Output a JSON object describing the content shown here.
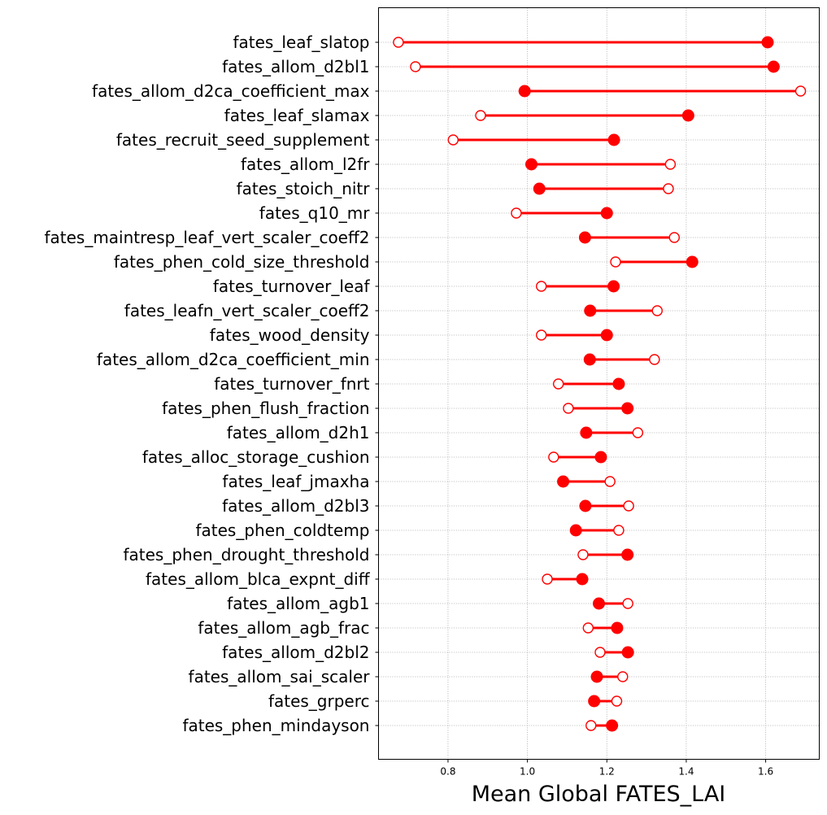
{
  "chart_data": {
    "type": "dumbbell",
    "xlabel": "Mean Global FATES_LAI",
    "xlim": [
      0.625,
      1.735
    ],
    "xticks": [
      0.8,
      1.0,
      1.2,
      1.4,
      1.6
    ],
    "xtick_labels": [
      "0.8",
      "1.0",
      "1.2",
      "1.4",
      "1.6"
    ],
    "grid": true,
    "colors": {
      "line": "#ff0000",
      "marker": "#ff0000"
    },
    "marker_legend": {
      "filled": "filled-circle",
      "open": "open-circle"
    },
    "rows": [
      {
        "label": "fates_leaf_slatop",
        "filled": 1.605,
        "open": 0.675
      },
      {
        "label": "fates_allom_d2bl1",
        "filled": 1.62,
        "open": 0.718
      },
      {
        "label": "fates_allom_d2ca_coefficient_max",
        "filled": 0.993,
        "open": 1.688
      },
      {
        "label": "fates_leaf_slamax",
        "filled": 1.405,
        "open": 0.882
      },
      {
        "label": "fates_recruit_seed_supplement",
        "filled": 1.218,
        "open": 0.813
      },
      {
        "label": "fates_allom_l2fr",
        "filled": 1.01,
        "open": 1.36
      },
      {
        "label": "fates_stoich_nitr",
        "filled": 1.03,
        "open": 1.355
      },
      {
        "label": "fates_q10_mr",
        "filled": 1.2,
        "open": 0.972
      },
      {
        "label": "fates_maintresp_leaf_vert_scaler_coeff2",
        "filled": 1.145,
        "open": 1.37
      },
      {
        "label": "fates_phen_cold_size_threshold",
        "filled": 1.415,
        "open": 1.222
      },
      {
        "label": "fates_turnover_leaf",
        "filled": 1.217,
        "open": 1.035
      },
      {
        "label": "fates_leafn_vert_scaler_coeff2",
        "filled": 1.158,
        "open": 1.327
      },
      {
        "label": "fates_wood_density",
        "filled": 1.2,
        "open": 1.035
      },
      {
        "label": "fates_allom_d2ca_coefficient_min",
        "filled": 1.157,
        "open": 1.32
      },
      {
        "label": "fates_turnover_fnrt",
        "filled": 1.23,
        "open": 1.078
      },
      {
        "label": "fates_phen_flush_fraction",
        "filled": 1.252,
        "open": 1.103
      },
      {
        "label": "fates_allom_d2h1",
        "filled": 1.148,
        "open": 1.278
      },
      {
        "label": "fates_alloc_storage_cushion",
        "filled": 1.185,
        "open": 1.066
      },
      {
        "label": "fates_leaf_jmaxha",
        "filled": 1.09,
        "open": 1.208
      },
      {
        "label": "fates_allom_d2bl3",
        "filled": 1.146,
        "open": 1.255
      },
      {
        "label": "fates_phen_coldtemp",
        "filled": 1.122,
        "open": 1.23
      },
      {
        "label": "fates_phen_drought_threshold",
        "filled": 1.252,
        "open": 1.14
      },
      {
        "label": "fates_allom_blca_expnt_diff",
        "filled": 1.138,
        "open": 1.05
      },
      {
        "label": "fates_allom_agb1",
        "filled": 1.18,
        "open": 1.253
      },
      {
        "label": "fates_allom_agb_frac",
        "filled": 1.226,
        "open": 1.153
      },
      {
        "label": "fates_allom_d2bl2",
        "filled": 1.253,
        "open": 1.183
      },
      {
        "label": "fates_allom_sai_scaler",
        "filled": 1.175,
        "open": 1.24
      },
      {
        "label": "fates_grperc",
        "filled": 1.168,
        "open": 1.225
      },
      {
        "label": "fates_phen_mindayson",
        "filled": 1.213,
        "open": 1.16
      }
    ]
  }
}
